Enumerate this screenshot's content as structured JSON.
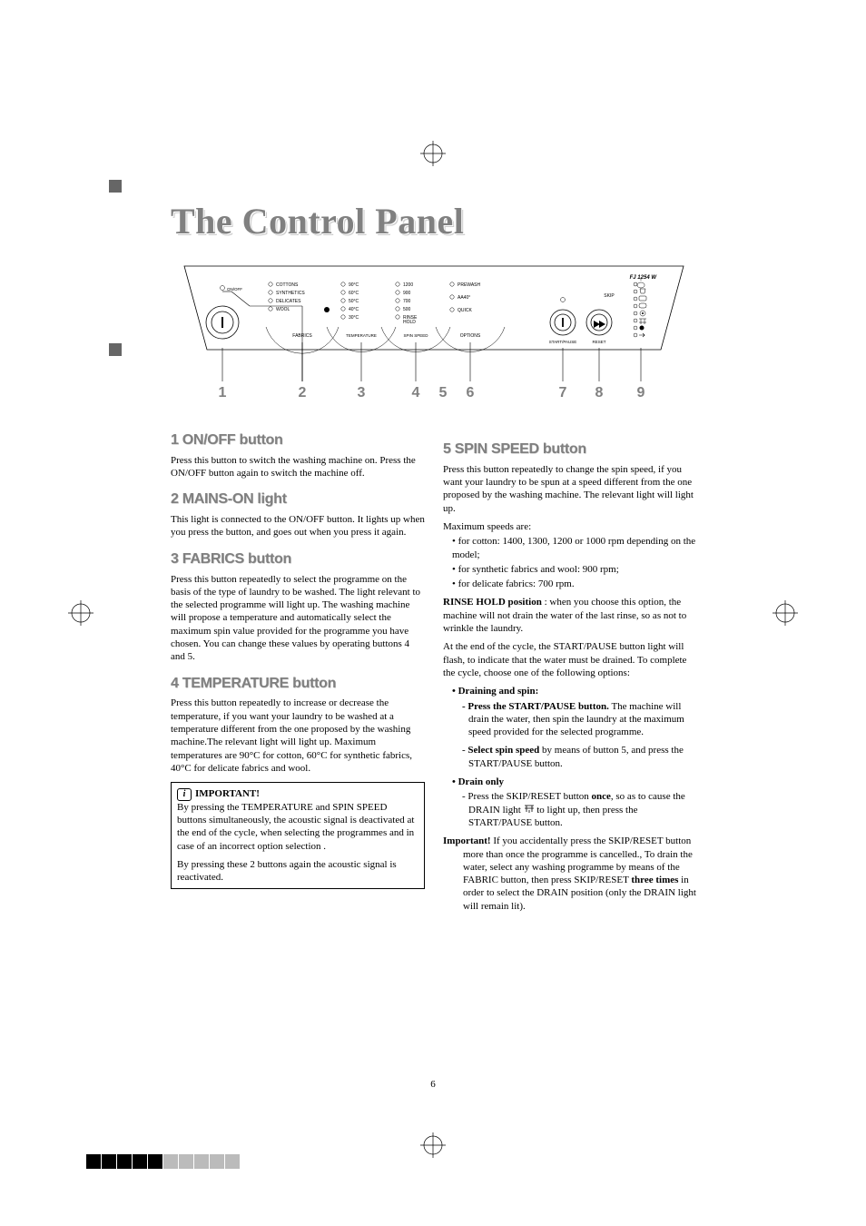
{
  "title": "The Control Panel",
  "page_number": "6",
  "diagram": {
    "model": "FJ 1254 W",
    "numbers": [
      "1",
      "2",
      "3",
      "4",
      "5",
      "6",
      "7",
      "8",
      "9"
    ],
    "groups": {
      "onoff": {
        "label": "ON/OFF"
      },
      "fabrics": {
        "label": "FABRICS",
        "items": [
          "COTTONS",
          "SYNTHETICS",
          "DELICATES",
          "WOOL"
        ]
      },
      "temperature": {
        "label": "TEMPERATURE",
        "items": [
          "90°C",
          "60°C",
          "50°C",
          "40°C",
          "30°C"
        ]
      },
      "spin": {
        "label": "SPIN SPEED",
        "items": [
          "1200",
          "900",
          "700",
          "500",
          "RINSE HOLD"
        ]
      },
      "options": {
        "label": "OPTIONS",
        "items": [
          "PREWASH",
          "AA40°",
          "QUICK"
        ]
      },
      "start": {
        "label": "START/PAUSE"
      },
      "skip": {
        "label": "SKIP"
      },
      "reset": {
        "label": "RESET"
      }
    },
    "number_color": "#808080",
    "line_color": "#000000",
    "text_size": 5
  },
  "sections": {
    "s1": {
      "heading": "1 ON/OFF button",
      "p1": "Press this button to switch the washing machine on. Press the ON/OFF button again to switch the machine off."
    },
    "s2": {
      "heading": "2 MAINS-ON light",
      "p1": "This light is connected to the ON/OFF button. It lights up when you press the button, and goes out when you press it again."
    },
    "s3": {
      "heading": "3 FABRICS button",
      "p1": "Press this button repeatedly to select the programme on the basis of the type of laundry to be washed. The light relevant to the selected programme will light up. The washing machine will propose a temperature and automatically select the maximum spin value provided for the programme you have chosen. You can change these values by operating buttons 4 and 5."
    },
    "s4": {
      "heading": "4 TEMPERATURE button",
      "p1": "Press this button repeatedly to increase or decrease the temperature, if you want your laundry to be washed at a temperature different from the one proposed by the washing machine.The relevant light will light up. Maximum temperatures are 90°C for cotton, 60°C for synthetic fabrics, 40°C for delicate fabrics and wool."
    },
    "important": {
      "label": "IMPORTANT!",
      "p1": "By pressing the TEMPERATURE and SPIN SPEED buttons simultaneously, the acoustic signal is deactivated at the end of the cycle, when selecting the programmes and in case of an incorrect option selection .",
      "p2": "By pressing these 2 buttons again the acoustic signal is reactivated."
    },
    "s5": {
      "heading": "5 SPIN SPEED button",
      "p1": "Press this button repeatedly to change the spin speed, if you want your laundry to be spun at a speed different from the one proposed by the washing machine. The relevant light will light up.",
      "p2": "Maximum speeds are:",
      "b1": "for cotton: 1400, 1300, 1200 or 1000 rpm depending on the model;",
      "b2": "for synthetic fabrics and wool: 900 rpm;",
      "b3": "for delicate fabrics: 700 rpm.",
      "p3a": "RINSE HOLD position",
      "p3b": " : when you choose this option, the machine will not drain the water of the last rinse, so as not to wrinkle the laundry.",
      "p4": "At the end of the cycle, the START/PAUSE button light will flash, to indicate that the water must be drained. To complete the cycle, choose one of the following options:",
      "ds_label": "• Draining and spin:",
      "ds1a": "- Press the START/PAUSE button.",
      "ds1b": " The machine will drain the water, then spin the laundry at the maximum speed provided for the selected programme.",
      "ds2a": "Select spin speed",
      "ds2b": " by means of button 5, and press the START/PAUSE button.",
      "do_label": "• Drain only",
      "do1a": "-  Press the SKIP/RESET button ",
      "do1b": "once",
      "do1c": ", so as to cause the DRAIN light ",
      "do1d": " to light up, then press the START/PAUSE button.",
      "imp_a": "Important!",
      "imp_b": " If you accidentally press the SKIP/RESET button more than once the programme is cancelled., To drain the water, select any washing programme by means of the FABRIC button, then press SKIP/RESET ",
      "imp_c": "three times",
      "imp_d": " in order to select the DRAIN position (only the DRAIN light will remain lit)."
    }
  },
  "squares_colors": [
    "#000",
    "#000",
    "#000",
    "#000",
    "#000",
    "#bbb",
    "#bbb",
    "#bbb",
    "#bbb",
    "#bbb"
  ]
}
